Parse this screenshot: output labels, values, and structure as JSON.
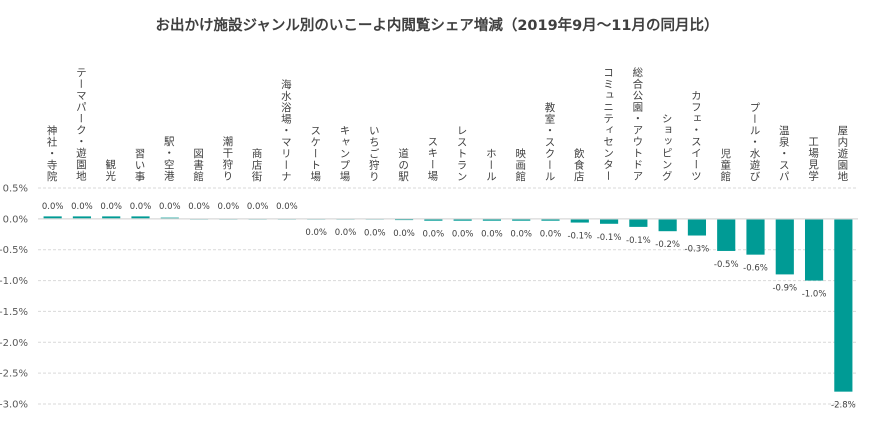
{
  "chart_data": {
    "type": "bar",
    "title": "お出かけ施設ジャンル別のいこーよ内閲覧シェア増減（2019年9月～11月の同月比）",
    "categories": [
      "神社・寺院",
      "テーマパーク・遊園地",
      "観光",
      "習い事",
      "駅・空港",
      "図書館",
      "潮干狩り",
      "商店街",
      "海水浴場・マリーナ",
      "スケート場",
      "キャンプ場",
      "いちご狩り",
      "道の駅",
      "スキー場",
      "レストラン",
      "ホール",
      "映画館",
      "教室・スクール",
      "飲食店",
      "コミュニティセンター",
      "総合公園・アウトドア",
      "ショッピング",
      "カフェ・スイーツ",
      "児童館",
      "プール・水遊び",
      "温泉・スパ",
      "工場見学",
      "屋内遊園地"
    ],
    "values": [
      0.04,
      0.04,
      0.04,
      0.04,
      0.02,
      0.0,
      0.0,
      0.0,
      0.0,
      0.0,
      0.0,
      -0.01,
      -0.02,
      -0.03,
      -0.03,
      -0.03,
      -0.03,
      -0.03,
      -0.06,
      -0.08,
      -0.13,
      -0.2,
      -0.27,
      -0.52,
      -0.58,
      -0.9,
      -1.0,
      -2.8
    ],
    "data_labels": [
      "0.0%",
      "0.0%",
      "0.0%",
      "0.0%",
      "0.0%",
      "0.0%",
      "0.0%",
      "0.0%",
      "0.0%",
      "0.0%",
      "0.0%",
      "0.0%",
      "0.0%",
      "0.0%",
      "0.0%",
      "0.0%",
      "0.0%",
      "0.0%",
      "-0.1%",
      "-0.1%",
      "-0.1%",
      "-0.2%",
      "-0.3%",
      "-0.5%",
      "-0.6%",
      "-0.9%",
      "-1.0%",
      "-2.8%"
    ],
    "label_above": [
      true,
      true,
      true,
      true,
      true,
      true,
      true,
      true,
      true,
      false,
      false,
      false,
      false,
      false,
      false,
      false,
      false,
      false,
      false,
      false,
      false,
      false,
      false,
      false,
      false,
      false,
      false,
      false
    ],
    "yticks": [
      "0.5%",
      "0.0%",
      "-0.5%",
      "-1.0%",
      "-1.5%",
      "-2.0%",
      "-2.5%",
      "-3.0%"
    ],
    "ytick_values": [
      0.5,
      0,
      -0.5,
      -1.0,
      -1.5,
      -2.0,
      -2.5,
      -3.0
    ],
    "ylim": [
      -3.0,
      0.5
    ],
    "xlabel": "",
    "ylabel": "",
    "grid": true,
    "legend": "none",
    "bar_color": "#009B95"
  }
}
